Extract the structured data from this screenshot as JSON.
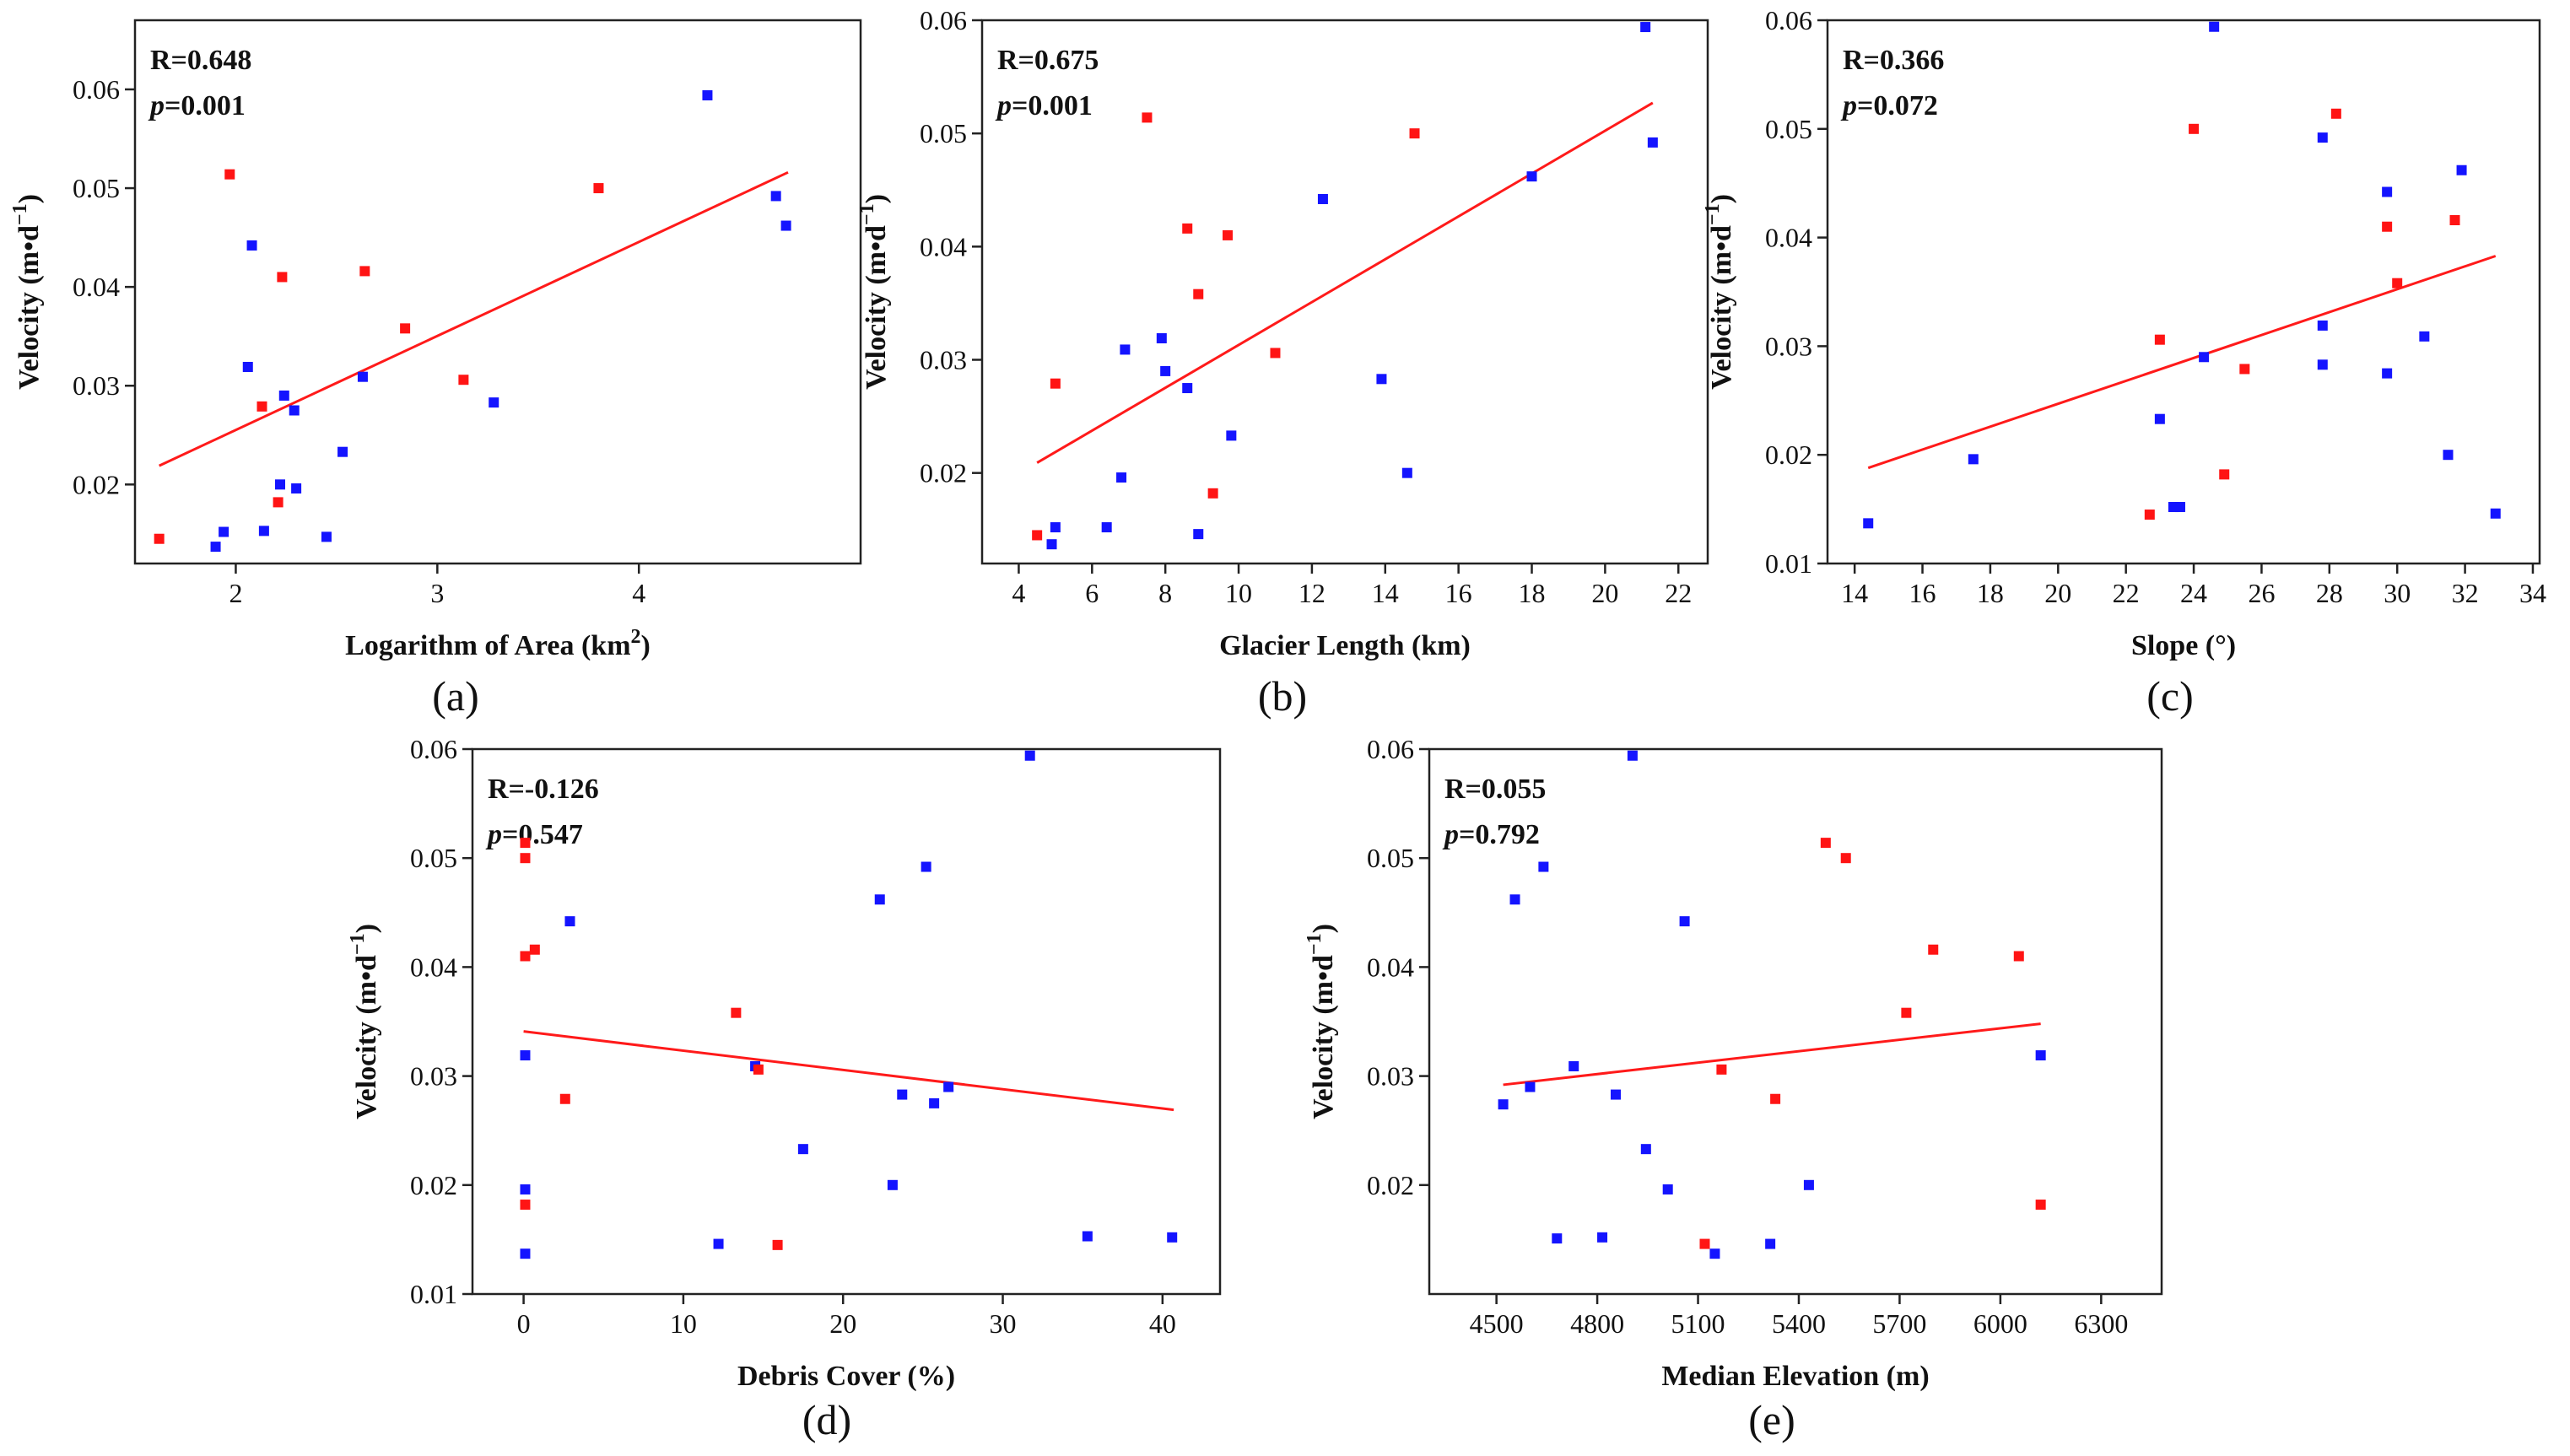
{
  "figure": {
    "colors": {
      "blue": "#1414ff",
      "red": "#ff1414",
      "fit_line": "#ff1a1a"
    }
  },
  "chart_data": [
    {
      "id": "a",
      "type": "scatter",
      "panel_label": "(a)",
      "xlabel": "Logarithm of Area (km",
      "xlabel_sup": "2",
      "xlabel_end": ")",
      "ylabel": "Velocity (m•d",
      "ylabel_sup": "−1",
      "ylabel_end": ")",
      "xlim": [
        1.5,
        5.1
      ],
      "ylim": [
        0.012,
        0.067
      ],
      "xticks": [
        2,
        3,
        4
      ],
      "yticks": [
        0.02,
        0.03,
        0.04,
        0.05,
        0.06
      ],
      "xtick_labels": [
        "2",
        "3",
        "4"
      ],
      "ytick_labels": [
        "0.02",
        "0.03",
        "0.04",
        "0.05",
        "0.06"
      ],
      "stat_r": "R=0.648",
      "stat_p_label": "p",
      "stat_p_value": "=0.001",
      "fit": {
        "x": [
          1.62,
          4.74
        ],
        "y": [
          0.0219,
          0.0516
        ]
      },
      "series": [
        {
          "name": "blue",
          "color": "#1414ff",
          "points": [
            [
              1.9,
              0.0137
            ],
            [
              1.94,
              0.0152
            ],
            [
              2.06,
              0.0319
            ],
            [
              2.08,
              0.0442
            ],
            [
              2.14,
              0.0153
            ],
            [
              2.22,
              0.02
            ],
            [
              2.24,
              0.029
            ],
            [
              2.29,
              0.0275
            ],
            [
              2.3,
              0.0196
            ],
            [
              2.45,
              0.0147
            ],
            [
              2.53,
              0.0233
            ],
            [
              2.63,
              0.0309
            ],
            [
              3.28,
              0.0283
            ],
            [
              4.34,
              0.0594
            ],
            [
              4.68,
              0.0492
            ],
            [
              4.73,
              0.0462
            ]
          ]
        },
        {
          "name": "red",
          "color": "#ff1414",
          "points": [
            [
              1.62,
              0.0145
            ],
            [
              1.97,
              0.0514
            ],
            [
              2.13,
              0.0279
            ],
            [
              2.21,
              0.0182
            ],
            [
              2.23,
              0.041
            ],
            [
              2.64,
              0.0416
            ],
            [
              2.84,
              0.0358
            ],
            [
              3.13,
              0.0306
            ],
            [
              3.8,
              0.05
            ]
          ]
        }
      ]
    },
    {
      "id": "b",
      "type": "scatter",
      "panel_label": "(b)",
      "xlabel": "Glacier Length (km)",
      "xlabel_sup": "",
      "xlabel_end": "",
      "ylabel": "Velocity (m•d",
      "ylabel_sup": "−1",
      "ylabel_end": ")",
      "xlim": [
        3.0,
        22.8
      ],
      "ylim": [
        0.012,
        0.06
      ],
      "xticks": [
        4,
        6,
        8,
        10,
        12,
        14,
        16,
        18,
        20,
        22
      ],
      "yticks": [
        0.02,
        0.03,
        0.04,
        0.05,
        0.06
      ],
      "xtick_labels": [
        "4",
        "6",
        "8",
        "10",
        "12",
        "14",
        "16",
        "18",
        "20",
        "22"
      ],
      "ytick_labels": [
        "0.02",
        "0.03",
        "0.04",
        "0.05",
        "0.06"
      ],
      "stat_r": "R=0.675",
      "stat_p_label": "p",
      "stat_p_value": "=0.001",
      "fit": {
        "x": [
          4.5,
          21.3
        ],
        "y": [
          0.0209,
          0.0527
        ]
      },
      "series": [
        {
          "name": "blue",
          "color": "#1414ff",
          "points": [
            [
              4.9,
              0.0137
            ],
            [
              5.0,
              0.0152
            ],
            [
              6.4,
              0.0152
            ],
            [
              6.8,
              0.0196
            ],
            [
              6.9,
              0.0309
            ],
            [
              7.9,
              0.0319
            ],
            [
              8.0,
              0.029
            ],
            [
              8.6,
              0.0275
            ],
            [
              8.9,
              0.0146
            ],
            [
              9.8,
              0.0233
            ],
            [
              12.3,
              0.0442
            ],
            [
              13.9,
              0.0283
            ],
            [
              14.6,
              0.02
            ],
            [
              18.0,
              0.0462
            ],
            [
              21.1,
              0.0594
            ],
            [
              21.3,
              0.0492
            ]
          ]
        },
        {
          "name": "red",
          "color": "#ff1414",
          "points": [
            [
              4.5,
              0.0145
            ],
            [
              5.0,
              0.0279
            ],
            [
              7.5,
              0.0514
            ],
            [
              8.6,
              0.0416
            ],
            [
              8.9,
              0.0358
            ],
            [
              9.3,
              0.0182
            ],
            [
              9.7,
              0.041
            ],
            [
              11.0,
              0.0306
            ],
            [
              14.8,
              0.05
            ]
          ]
        }
      ]
    },
    {
      "id": "c",
      "type": "scatter",
      "panel_label": "(c)",
      "xlabel": "Slope (°)",
      "xlabel_sup": "",
      "xlabel_end": "",
      "ylabel": "Velocity (m•d",
      "ylabel_sup": "−1",
      "ylabel_end": ")",
      "xlim": [
        13.2,
        34.2
      ],
      "ylim": [
        0.01,
        0.06
      ],
      "xticks": [
        14,
        16,
        18,
        20,
        22,
        24,
        26,
        28,
        30,
        32,
        34
      ],
      "yticks": [
        0.01,
        0.02,
        0.03,
        0.04,
        0.05,
        0.06
      ],
      "xtick_labels": [
        "14",
        "16",
        "18",
        "20",
        "22",
        "24",
        "26",
        "28",
        "30",
        "32",
        "34"
      ],
      "ytick_labels": [
        "0.01",
        "0.02",
        "0.03",
        "0.04",
        "0.05",
        "0.06"
      ],
      "stat_r": "R=0.366",
      "stat_p_label": "p",
      "stat_p_value": "=0.072",
      "fit": {
        "x": [
          14.4,
          32.9
        ],
        "y": [
          0.0188,
          0.0383
        ]
      },
      "series": [
        {
          "name": "blue",
          "color": "#1414ff",
          "points": [
            [
              14.4,
              0.0137
            ],
            [
              17.5,
              0.0196
            ],
            [
              23.0,
              0.0233
            ],
            [
              23.4,
              0.0152
            ],
            [
              23.6,
              0.0152
            ],
            [
              24.3,
              0.029
            ],
            [
              24.6,
              0.0594
            ],
            [
              27.8,
              0.0492
            ],
            [
              27.8,
              0.0319
            ],
            [
              27.8,
              0.0283
            ],
            [
              29.7,
              0.0442
            ],
            [
              29.7,
              0.0275
            ],
            [
              30.8,
              0.0309
            ],
            [
              31.5,
              0.02
            ],
            [
              31.9,
              0.0462
            ],
            [
              32.9,
              0.0146
            ]
          ]
        },
        {
          "name": "red",
          "color": "#ff1414",
          "points": [
            [
              22.7,
              0.0145
            ],
            [
              23.0,
              0.0306
            ],
            [
              24.0,
              0.05
            ],
            [
              24.9,
              0.0182
            ],
            [
              25.5,
              0.0279
            ],
            [
              28.2,
              0.0514
            ],
            [
              29.7,
              0.041
            ],
            [
              30.0,
              0.0358
            ],
            [
              31.7,
              0.0416
            ]
          ]
        }
      ]
    },
    {
      "id": "d",
      "type": "scatter",
      "panel_label": "(d)",
      "xlabel": "Debris Cover (%)",
      "xlabel_sup": "",
      "xlabel_end": "",
      "ylabel": "Velocity (m•d",
      "ylabel_sup": "−1",
      "ylabel_end": ")",
      "xlim": [
        -3.2,
        43.6
      ],
      "ylim": [
        0.01,
        0.06
      ],
      "xticks": [
        0,
        10,
        20,
        30,
        40
      ],
      "yticks": [
        0.01,
        0.02,
        0.03,
        0.04,
        0.05,
        0.06
      ],
      "xtick_labels": [
        "0",
        "10",
        "20",
        "30",
        "40"
      ],
      "ytick_labels": [
        "0.01",
        "0.02",
        "0.03",
        "0.04",
        "0.05",
        "0.06"
      ],
      "stat_r": "R=-0.126",
      "stat_p_label": "p",
      "stat_p_value": "=0.547",
      "fit": {
        "x": [
          0.0,
          40.7
        ],
        "y": [
          0.0341,
          0.0269
        ]
      },
      "series": [
        {
          "name": "blue",
          "color": "#1414ff",
          "points": [
            [
              0.1,
              0.0137
            ],
            [
              0.1,
              0.0196
            ],
            [
              0.1,
              0.0319
            ],
            [
              2.9,
              0.0442
            ],
            [
              12.2,
              0.0146
            ],
            [
              14.5,
              0.0309
            ],
            [
              17.5,
              0.0233
            ],
            [
              22.3,
              0.0462
            ],
            [
              23.1,
              0.02
            ],
            [
              23.7,
              0.0283
            ],
            [
              25.2,
              0.0492
            ],
            [
              25.7,
              0.0275
            ],
            [
              26.6,
              0.029
            ],
            [
              31.7,
              0.0594
            ],
            [
              35.3,
              0.0153
            ],
            [
              40.6,
              0.0152
            ]
          ]
        },
        {
          "name": "red",
          "color": "#ff1414",
          "points": [
            [
              0.1,
              0.0182
            ],
            [
              0.1,
              0.041
            ],
            [
              0.1,
              0.05
            ],
            [
              0.1,
              0.0514
            ],
            [
              0.7,
              0.0416
            ],
            [
              2.6,
              0.0279
            ],
            [
              13.3,
              0.0358
            ],
            [
              14.7,
              0.0306
            ],
            [
              15.9,
              0.0145
            ]
          ]
        }
      ]
    },
    {
      "id": "e",
      "type": "scatter",
      "panel_label": "(e)",
      "xlabel": "Median Elevation (m)",
      "xlabel_sup": "",
      "xlabel_end": "",
      "ylabel": "Velocity (m•d",
      "ylabel_sup": "−1",
      "ylabel_end": ")",
      "xlim": [
        4300,
        6480
      ],
      "ylim": [
        0.01,
        0.06
      ],
      "xticks": [
        4500,
        4800,
        5100,
        5400,
        5700,
        6000,
        6300
      ],
      "yticks": [
        0.02,
        0.03,
        0.04,
        0.05,
        0.06
      ],
      "xtick_labels": [
        "4500",
        "4800",
        "5100",
        "5400",
        "5700",
        "6000",
        "6300"
      ],
      "ytick_labels": [
        "0.02",
        "0.03",
        "0.04",
        "0.05",
        "0.06"
      ],
      "stat_r": "R=0.055",
      "stat_p_label": "p",
      "stat_p_value": "=0.792",
      "fit": {
        "x": [
          4520,
          6120
        ],
        "y": [
          0.0292,
          0.0348
        ]
      },
      "series": [
        {
          "name": "blue",
          "color": "#1414ff",
          "points": [
            [
              4520,
              0.0274
            ],
            [
              4555,
              0.0462
            ],
            [
              4600,
              0.029
            ],
            [
              4640,
              0.0492
            ],
            [
              4680,
              0.0151
            ],
            [
              4730,
              0.0309
            ],
            [
              4815,
              0.0152
            ],
            [
              4855,
              0.0283
            ],
            [
              4905,
              0.0594
            ],
            [
              4945,
              0.0233
            ],
            [
              5010,
              0.0196
            ],
            [
              5060,
              0.0442
            ],
            [
              5150,
              0.0137
            ],
            [
              5315,
              0.0146
            ],
            [
              5430,
              0.02
            ],
            [
              6120,
              0.0319
            ]
          ]
        },
        {
          "name": "red",
          "color": "#ff1414",
          "points": [
            [
              5120,
              0.0146
            ],
            [
              5170,
              0.0306
            ],
            [
              5330,
              0.0279
            ],
            [
              5480,
              0.0514
            ],
            [
              5540,
              0.05
            ],
            [
              5720,
              0.0358
            ],
            [
              5800,
              0.0416
            ],
            [
              6055,
              0.041
            ],
            [
              6120,
              0.0182
            ]
          ]
        }
      ]
    }
  ]
}
